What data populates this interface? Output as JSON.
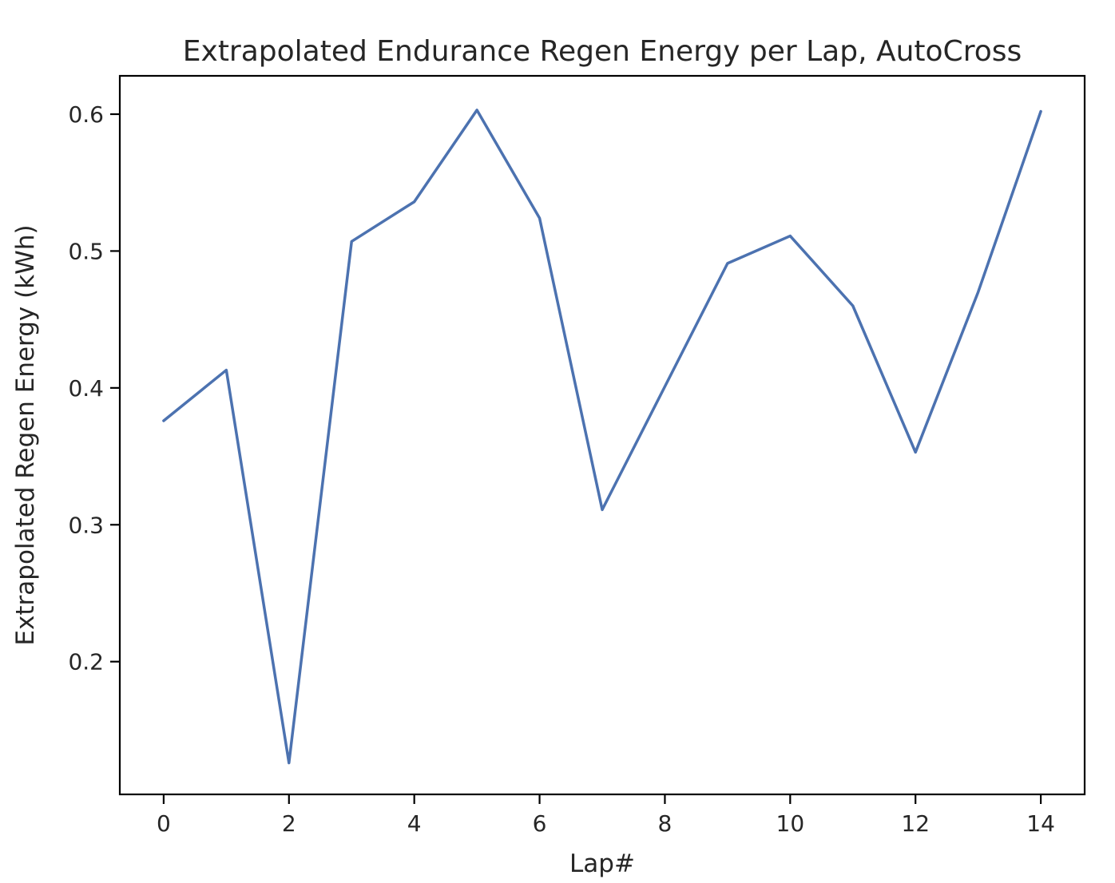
{
  "figure": {
    "background": "#ffffff",
    "spine_color": "#000000"
  },
  "chart_data": {
    "type": "line",
    "title": "Extrapolated Endurance Regen Energy per Lap, AutoCross",
    "xlabel": "Lap#",
    "ylabel": "Extrapolated Regen Energy (kWh)",
    "x": [
      0,
      1,
      2,
      3,
      4,
      5,
      6,
      7,
      8,
      9,
      10,
      11,
      12,
      13,
      14
    ],
    "y": [
      0.376,
      0.413,
      0.126,
      0.507,
      0.536,
      0.603,
      0.524,
      0.311,
      0.401,
      0.491,
      0.511,
      0.46,
      0.353,
      0.47,
      0.602
    ],
    "xticks": [
      0,
      2,
      4,
      6,
      8,
      10,
      12,
      14
    ],
    "yticks": [
      0.2,
      0.3,
      0.4,
      0.5,
      0.6
    ],
    "xlim": [
      -0.7,
      14.7
    ],
    "ylim": [
      0.103,
      0.628
    ],
    "line_color": "#4C72B0",
    "grid": false,
    "legend_position": "none"
  }
}
